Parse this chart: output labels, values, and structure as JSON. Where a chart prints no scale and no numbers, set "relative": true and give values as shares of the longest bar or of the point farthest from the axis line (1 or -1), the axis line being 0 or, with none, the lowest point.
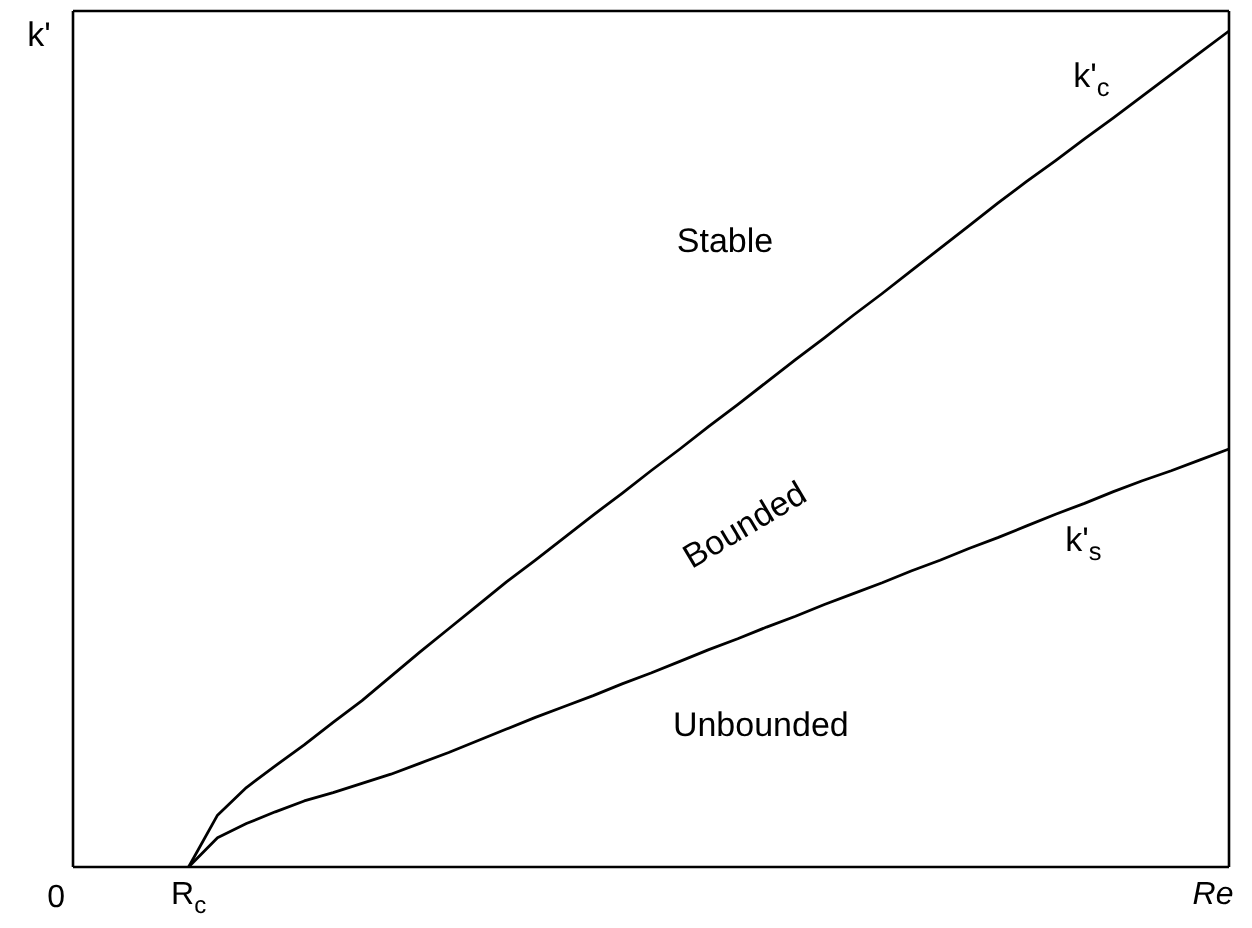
{
  "chart_data": {
    "type": "line",
    "relative": true,
    "xlabel": "Re",
    "ylabel": "k'",
    "categories": [
      null,
      null,
      null,
      null,
      null,
      null,
      null,
      null,
      null,
      null,
      null,
      null,
      null,
      null,
      null,
      null,
      null,
      null,
      null,
      null,
      null,
      null,
      null,
      null,
      null,
      null,
      null,
      null,
      null,
      null,
      null,
      null,
      null,
      null,
      null,
      null,
      null,
      null,
      null,
      null,
      null
    ],
    "series": [
      {
        "name": "k'$_{c}$",
        "color": "#000000",
        "values": [
          null,
          null,
          null,
          null,
          0,
          0.062,
          0.095,
          0.121,
          0.146,
          0.173,
          0.199,
          0.228,
          0.257,
          0.285,
          0.313,
          0.341,
          0.367,
          0.394,
          0.421,
          0.447,
          0.474,
          0.5,
          0.527,
          0.553,
          0.58,
          0.607,
          0.633,
          0.66,
          0.686,
          0.713,
          0.74,
          0.767,
          0.794,
          0.82,
          0.845,
          0.871,
          0.896,
          0.922,
          0.948,
          0.974,
          1.0
        ]
      },
      {
        "name": "k'$_{s}$",
        "color": "#000000",
        "values": [
          null,
          null,
          null,
          null,
          0,
          0.035,
          0.052,
          0.066,
          0.079,
          0.089,
          0.1,
          0.111,
          0.124,
          0.137,
          0.151,
          0.165,
          0.179,
          0.192,
          0.205,
          0.219,
          0.232,
          0.246,
          0.26,
          0.273,
          0.287,
          0.3,
          0.314,
          0.327,
          0.34,
          0.354,
          0.367,
          0.381,
          0.394,
          0.408,
          0.422,
          0.435,
          0.449,
          0.462,
          0.474,
          0.487,
          0.5
        ]
      }
    ],
    "annotations": [
      "0",
      "R$_{c}$",
      "Stable",
      "Bounded",
      "Unbounded"
    ],
    "line_style": "solid"
  }
}
